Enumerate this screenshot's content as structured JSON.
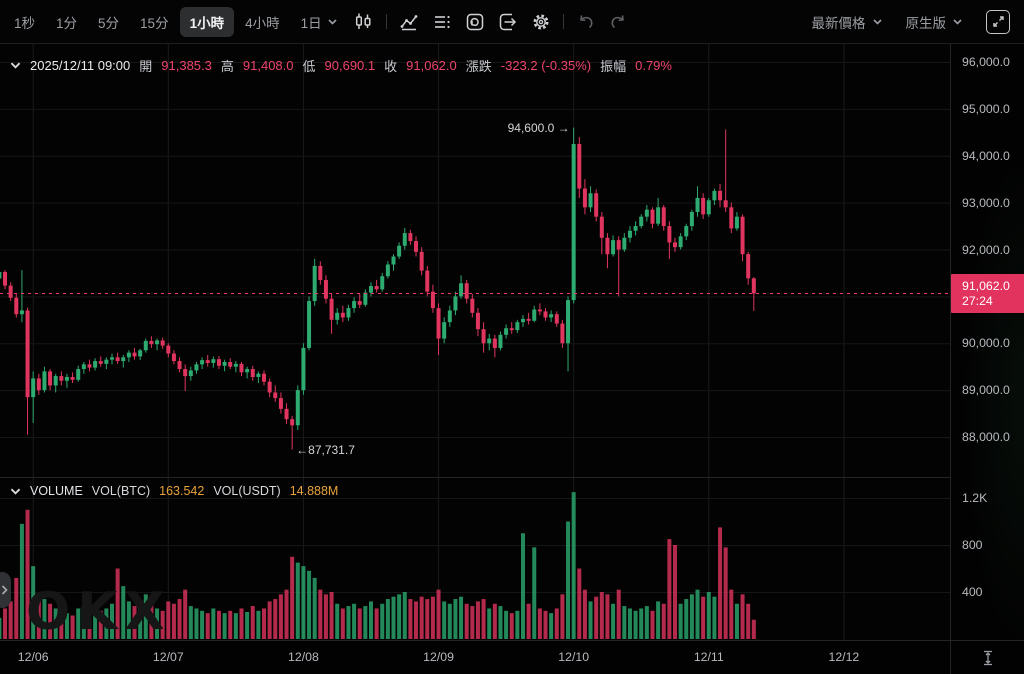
{
  "colors": {
    "up": "#2dab70",
    "down": "#e0355f",
    "price_line": "#f23a6e",
    "badge_bg": "#e2325e",
    "orange": "#e8a33c",
    "grid": "#191a1b",
    "axis_text": "#b8babf"
  },
  "toolbar": {
    "timeframes": [
      "1秒",
      "1分",
      "5分",
      "15分",
      "1小時",
      "4小時",
      "1日"
    ],
    "selected_timeframe": "1小時",
    "price_mode": "最新價格",
    "version": "原生版"
  },
  "ohlc": {
    "datetime": "2025/12/11 09:00",
    "open_label": "開",
    "open": "91,385.3",
    "high_label": "高",
    "high": "91,408.0",
    "low_label": "低",
    "low": "90,690.1",
    "close_label": "收",
    "close": "91,062.0",
    "change_label": "漲跌",
    "change": "-323.2 (-0.35%)",
    "amplitude_label": "振幅",
    "amplitude": "0.79%"
  },
  "annotations": {
    "high_text": "94,600.0 →",
    "low_text": "←87,731.7"
  },
  "volume_header": {
    "title": "VOLUME",
    "vol_btc_label": "VOL(BTC)",
    "vol_btc": "163.542",
    "vol_usdt_label": "VOL(USDT)",
    "vol_usdt": "14.888M"
  },
  "price_badge": {
    "price": "91,062.0",
    "countdown": "27:24"
  },
  "watermark": "OKX",
  "chart_data": {
    "type": "candlestick+volume",
    "timeframe": "1 hour",
    "start_time": "2025/12/05 18:00",
    "end_time": "2025/12/11 09:00",
    "current_price": 91062.0,
    "y_ticks": [
      {
        "v": 96000,
        "label": "96,000.0"
      },
      {
        "v": 95000,
        "label": "95,000.0"
      },
      {
        "v": 94000,
        "label": "94,000.0"
      },
      {
        "v": 93000,
        "label": "93,000.0"
      },
      {
        "v": 92000,
        "label": "92,000.0"
      },
      {
        "v": 90000,
        "label": "90,000.0"
      },
      {
        "v": 89000,
        "label": "89,000.0"
      },
      {
        "v": 88000,
        "label": "88,000.0"
      }
    ],
    "grid_y": [
      96000,
      95000,
      94000,
      93000,
      92000,
      91000,
      90000,
      89000,
      88000
    ],
    "vol_ticks": [
      {
        "v": 1200,
        "label": "1.2K"
      },
      {
        "v": 800,
        "label": "800"
      },
      {
        "v": 400,
        "label": "400"
      }
    ],
    "x_ticks": [
      {
        "hour": 6,
        "label": "12/06"
      },
      {
        "hour": 30,
        "label": "12/07"
      },
      {
        "hour": 54,
        "label": "12/08"
      },
      {
        "hour": 78,
        "label": "12/09"
      },
      {
        "hour": 102,
        "label": "12/10"
      },
      {
        "hour": 126,
        "label": "12/11"
      },
      {
        "hour": 150,
        "label": "12/12"
      }
    ],
    "high_marker": {
      "index": 102,
      "price": 94600.0
    },
    "low_marker": {
      "index": 52,
      "price": 87731.7
    },
    "candles": [
      [
        91380,
        91600,
        91300,
        91520
      ],
      [
        91520,
        91560,
        91150,
        91230
      ],
      [
        91230,
        91300,
        90900,
        90970
      ],
      [
        90970,
        91050,
        90550,
        90620
      ],
      [
        90620,
        91560,
        90450,
        90700
      ],
      [
        90700,
        90760,
        88050,
        88850
      ],
      [
        88850,
        89400,
        88300,
        89250
      ],
      [
        89250,
        89350,
        88900,
        89000
      ],
      [
        89000,
        89500,
        88950,
        89400
      ],
      [
        89400,
        89450,
        89000,
        89100
      ],
      [
        89100,
        89350,
        88950,
        89300
      ],
      [
        89300,
        89400,
        89100,
        89200
      ],
      [
        89200,
        89350,
        89050,
        89280
      ],
      [
        89280,
        89380,
        89150,
        89220
      ],
      [
        89220,
        89520,
        89180,
        89450
      ],
      [
        89450,
        89600,
        89350,
        89550
      ],
      [
        89550,
        89650,
        89400,
        89480
      ],
      [
        89480,
        89680,
        89420,
        89620
      ],
      [
        89620,
        89720,
        89500,
        89560
      ],
      [
        89560,
        89700,
        89450,
        89650
      ],
      [
        89650,
        89780,
        89550,
        89700
      ],
      [
        89700,
        89800,
        89560,
        89620
      ],
      [
        89620,
        89750,
        89480,
        89700
      ],
      [
        89700,
        89850,
        89600,
        89800
      ],
      [
        89800,
        89900,
        89650,
        89720
      ],
      [
        89720,
        89880,
        89640,
        89850
      ],
      [
        89850,
        90100,
        89800,
        90050
      ],
      [
        90050,
        90150,
        89900,
        89980
      ],
      [
        89980,
        90100,
        89850,
        90060
      ],
      [
        90060,
        90120,
        89880,
        89950
      ],
      [
        89950,
        90000,
        89700,
        89780
      ],
      [
        89780,
        89850,
        89550,
        89620
      ],
      [
        89620,
        89700,
        89380,
        89450
      ],
      [
        89450,
        89550,
        88980,
        89300
      ],
      [
        89300,
        89500,
        89200,
        89420
      ],
      [
        89420,
        89600,
        89350,
        89550
      ],
      [
        89550,
        89700,
        89450,
        89640
      ],
      [
        89640,
        89750,
        89500,
        89580
      ],
      [
        89580,
        89720,
        89480,
        89660
      ],
      [
        89660,
        89730,
        89450,
        89520
      ],
      [
        89520,
        89650,
        89400,
        89600
      ],
      [
        89600,
        89680,
        89450,
        89500
      ],
      [
        89500,
        89620,
        89380,
        89560
      ],
      [
        89560,
        89600,
        89300,
        89380
      ],
      [
        89380,
        89500,
        89250,
        89450
      ],
      [
        89450,
        89520,
        89200,
        89280
      ],
      [
        89280,
        89400,
        89150,
        89350
      ],
      [
        89350,
        89420,
        89100,
        89180
      ],
      [
        89180,
        89250,
        88850,
        88950
      ],
      [
        88950,
        89100,
        88750,
        88830
      ],
      [
        88830,
        88950,
        88500,
        88600
      ],
      [
        88600,
        88720,
        88280,
        88380
      ],
      [
        88380,
        88450,
        87731.7,
        88250
      ],
      [
        88250,
        89100,
        88150,
        89000
      ],
      [
        89000,
        90000,
        88900,
        89900
      ],
      [
        89900,
        91000,
        89850,
        90900
      ],
      [
        90900,
        91800,
        90800,
        91650
      ],
      [
        91650,
        91750,
        91250,
        91350
      ],
      [
        91350,
        91450,
        90850,
        90950
      ],
      [
        90950,
        91050,
        90200,
        90500
      ],
      [
        90500,
        90750,
        90400,
        90650
      ],
      [
        90650,
        90800,
        90450,
        90550
      ],
      [
        90550,
        90820,
        90480,
        90750
      ],
      [
        90750,
        90980,
        90650,
        90900
      ],
      [
        90900,
        91050,
        90750,
        90820
      ],
      [
        90820,
        91150,
        90780,
        91080
      ],
      [
        91080,
        91300,
        91000,
        91220
      ],
      [
        91220,
        91350,
        91080,
        91150
      ],
      [
        91150,
        91500,
        91100,
        91430
      ],
      [
        91430,
        91750,
        91380,
        91680
      ],
      [
        91680,
        91900,
        91550,
        91850
      ],
      [
        91850,
        92150,
        91800,
        92080
      ],
      [
        92080,
        92460,
        92000,
        92350
      ],
      [
        92350,
        92420,
        92100,
        92180
      ],
      [
        92180,
        92280,
        91850,
        91950
      ],
      [
        91950,
        92050,
        91450,
        91550
      ],
      [
        91550,
        91650,
        91000,
        91100
      ],
      [
        91100,
        91250,
        90650,
        90750
      ],
      [
        90750,
        90850,
        89750,
        90100
      ],
      [
        90100,
        90550,
        90000,
        90450
      ],
      [
        90450,
        90800,
        90350,
        90700
      ],
      [
        90700,
        91100,
        90600,
        91000
      ],
      [
        91000,
        91450,
        90950,
        91280
      ],
      [
        91280,
        91350,
        90850,
        90950
      ],
      [
        90950,
        91050,
        90550,
        90650
      ],
      [
        90650,
        90750,
        90150,
        90300
      ],
      [
        90300,
        90450,
        89800,
        90000
      ],
      [
        90000,
        90200,
        89850,
        90100
      ],
      [
        90100,
        90180,
        89700,
        89900
      ],
      [
        89900,
        90250,
        89850,
        90180
      ],
      [
        90180,
        90400,
        90100,
        90320
      ],
      [
        90320,
        90450,
        90200,
        90280
      ],
      [
        90280,
        90500,
        90220,
        90450
      ],
      [
        90450,
        90600,
        90350,
        90520
      ],
      [
        90520,
        90650,
        90400,
        90480
      ],
      [
        90480,
        90800,
        90450,
        90720
      ],
      [
        90720,
        90850,
        90600,
        90680
      ],
      [
        90680,
        90750,
        90480,
        90550
      ],
      [
        90550,
        90700,
        90450,
        90620
      ],
      [
        90620,
        90680,
        90350,
        90420
      ],
      [
        90420,
        90500,
        89900,
        90000
      ],
      [
        90000,
        91000,
        89400,
        90920
      ],
      [
        90920,
        94600,
        90850,
        94250
      ],
      [
        94250,
        94400,
        93100,
        93300
      ],
      [
        93300,
        93500,
        92750,
        92900
      ],
      [
        92900,
        93350,
        92800,
        93200
      ],
      [
        93200,
        93280,
        92600,
        92700
      ],
      [
        92700,
        92800,
        91900,
        92250
      ],
      [
        92250,
        92350,
        91600,
        91900
      ],
      [
        91900,
        92300,
        91850,
        92200
      ],
      [
        92200,
        92280,
        91000,
        92000
      ],
      [
        92000,
        92350,
        91950,
        92250
      ],
      [
        92250,
        92500,
        92150,
        92400
      ],
      [
        92400,
        92600,
        92300,
        92500
      ],
      [
        92500,
        92750,
        92450,
        92700
      ],
      [
        92700,
        92950,
        92600,
        92850
      ],
      [
        92850,
        92900,
        92450,
        92550
      ],
      [
        92550,
        93100,
        92500,
        92900
      ],
      [
        92900,
        92950,
        92400,
        92500
      ],
      [
        92500,
        92600,
        91800,
        92150
      ],
      [
        92150,
        92250,
        91950,
        92050
      ],
      [
        92050,
        92350,
        92000,
        92280
      ],
      [
        92280,
        92550,
        92200,
        92500
      ],
      [
        92500,
        92850,
        92400,
        92800
      ],
      [
        92800,
        93350,
        92700,
        93100
      ],
      [
        93100,
        93200,
        92650,
        92750
      ],
      [
        92750,
        93100,
        92700,
        93050
      ],
      [
        93050,
        93300,
        92950,
        93250
      ],
      [
        93250,
        93400,
        92900,
        93050
      ],
      [
        93050,
        94560,
        92800,
        92900
      ],
      [
        92900,
        93000,
        92350,
        92450
      ],
      [
        92450,
        92800,
        92400,
        92700
      ],
      [
        92700,
        92750,
        91750,
        91900
      ],
      [
        91900,
        91950,
        91250,
        91385
      ],
      [
        91385.3,
        91408.0,
        90690.1,
        91062.0
      ]
    ],
    "volumes": [
      180,
      260,
      320,
      520,
      980,
      1100,
      620,
      380,
      340,
      300,
      260,
      240,
      220,
      200,
      260,
      280,
      220,
      300,
      240,
      260,
      300,
      600,
      450,
      320,
      280,
      300,
      380,
      300,
      260,
      240,
      320,
      300,
      340,
      420,
      280,
      260,
      240,
      220,
      260,
      240,
      220,
      240,
      220,
      260,
      230,
      280,
      240,
      260,
      320,
      340,
      380,
      420,
      700,
      650,
      620,
      580,
      520,
      420,
      380,
      400,
      300,
      260,
      280,
      300,
      260,
      280,
      320,
      260,
      300,
      340,
      360,
      380,
      400,
      340,
      320,
      360,
      340,
      360,
      420,
      320,
      300,
      340,
      360,
      300,
      280,
      320,
      340,
      260,
      300,
      280,
      240,
      220,
      240,
      900,
      300,
      780,
      260,
      240,
      220,
      260,
      380,
      1000,
      1250,
      600,
      420,
      320,
      360,
      400,
      380,
      300,
      420,
      280,
      260,
      240,
      260,
      280,
      240,
      320,
      300,
      850,
      800,
      300,
      340,
      380,
      420,
      360,
      400,
      360,
      950,
      780,
      420,
      300,
      380,
      300,
      164
    ]
  },
  "time_axis_labels": [
    "12/06",
    "12/07",
    "12/08",
    "12/09",
    "12/10",
    "12/11",
    "12/12"
  ]
}
